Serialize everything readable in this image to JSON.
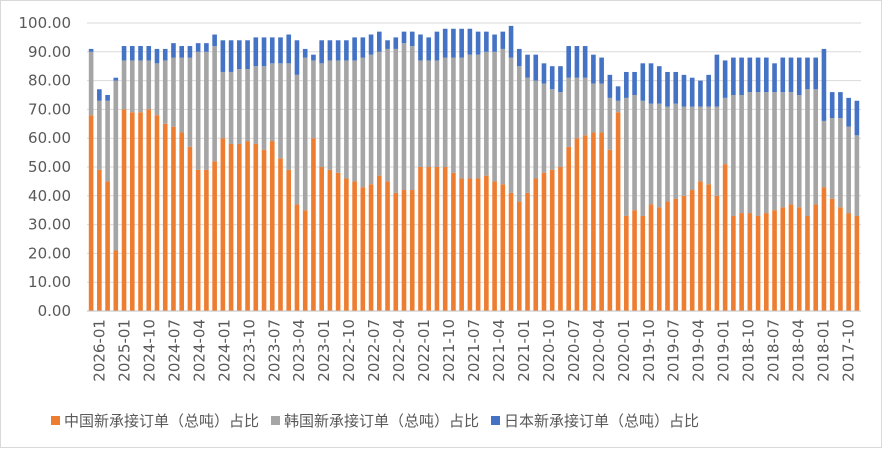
{
  "chart_data": {
    "type": "bar",
    "stacked": true,
    "ylim": [
      0,
      100
    ],
    "ytick_labels": [
      "0.00",
      "10.00",
      "20.00",
      "30.00",
      "40.00",
      "50.00",
      "60.00",
      "70.00",
      "80.00",
      "90.00",
      "100.00"
    ],
    "grid": true,
    "legend_position": "bottom",
    "x_tick_labels": [
      "2026-01",
      "2025-01",
      "2024-10",
      "2024-07",
      "2024-04",
      "2024-01",
      "2023-10",
      "2023-07",
      "2023-04",
      "2023-01",
      "2022-10",
      "2022-07",
      "2022-04",
      "2022-01",
      "2021-10",
      "2021-07",
      "2021-04",
      "2021-01",
      "2020-10",
      "2020-07",
      "2020-04",
      "2020-01",
      "2019-10",
      "2019-07",
      "2019-04",
      "2019-01",
      "2018-10",
      "2018-07",
      "2018-04",
      "2018-01",
      "2017-10"
    ],
    "series": [
      {
        "name": "中国新承接订单（总吨）占比",
        "color": "#ED7D31",
        "values": [
          68,
          49,
          45,
          21,
          70,
          69,
          69,
          70,
          68,
          65,
          64,
          62,
          57,
          49,
          49,
          52,
          60,
          58,
          58,
          59,
          58,
          56,
          59,
          53,
          49,
          37,
          35,
          60,
          50,
          49,
          48,
          46,
          45,
          43,
          44,
          47,
          45,
          41,
          42,
          42,
          50,
          50,
          50,
          50,
          48,
          46,
          46,
          46,
          47,
          45,
          44,
          41,
          38,
          41,
          46,
          48,
          49,
          50,
          57,
          60,
          61,
          62,
          62,
          56,
          69,
          33,
          35,
          33,
          37,
          36,
          38,
          39,
          40,
          42,
          45,
          44,
          40,
          51,
          33,
          34,
          34,
          33,
          34,
          35,
          36,
          37,
          36,
          33,
          37,
          43,
          39,
          36,
          34,
          33
        ]
      },
      {
        "name": "韩国新承接订单（总吨）占比",
        "color": "#A5A5A5",
        "values": [
          22,
          24,
          28,
          59,
          17,
          18,
          18,
          17,
          18,
          22,
          24,
          26,
          31,
          41,
          41,
          40,
          23,
          25,
          26,
          25,
          27,
          29,
          27,
          33,
          37,
          45,
          53,
          27,
          36,
          38,
          39,
          41,
          42,
          45,
          45,
          43,
          46,
          50,
          51,
          50,
          37,
          37,
          37,
          38,
          40,
          42,
          43,
          43,
          43,
          45,
          47,
          47,
          47,
          40,
          34,
          31,
          28,
          26,
          24,
          21,
          20,
          17,
          17,
          18,
          4,
          41,
          40,
          40,
          35,
          36,
          33,
          33,
          31,
          29,
          26,
          27,
          31,
          23,
          42,
          41,
          42,
          43,
          42,
          41,
          40,
          39,
          39,
          44,
          40,
          23,
          28,
          31,
          30,
          28
        ]
      },
      {
        "name": "日本新承接订单（总吨）占比",
        "color": "#4472C4",
        "values": [
          1,
          4,
          2,
          1,
          5,
          5,
          5,
          5,
          5,
          4,
          5,
          4,
          4,
          3,
          3,
          4,
          11,
          11,
          10,
          10,
          10,
          10,
          9,
          9,
          10,
          12,
          3,
          2,
          8,
          7,
          7,
          7,
          8,
          7,
          7,
          7,
          3,
          4,
          4,
          5,
          9,
          8,
          10,
          10,
          10,
          10,
          9,
          8,
          7,
          6,
          6,
          11,
          6,
          8,
          9,
          7,
          8,
          9,
          11,
          11,
          11,
          10,
          9,
          8,
          5,
          9,
          8,
          13,
          14,
          13,
          12,
          11,
          11,
          10,
          9,
          11,
          18,
          13,
          13,
          13,
          12,
          12,
          12,
          10,
          12,
          12,
          13,
          11,
          11,
          25,
          9,
          9,
          10,
          12
        ]
      }
    ]
  }
}
